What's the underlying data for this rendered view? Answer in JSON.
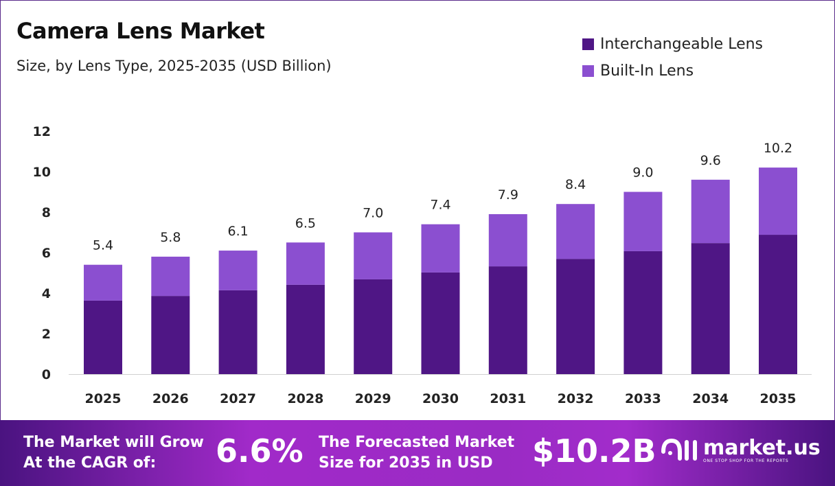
{
  "chart_data": {
    "type": "bar",
    "stacked": true,
    "title": "Camera Lens Market",
    "subtitle": "Size, by Lens Type, 2025-2035 (USD Billion)",
    "categories": [
      "2025",
      "2026",
      "2027",
      "2028",
      "2029",
      "2030",
      "2031",
      "2032",
      "2033",
      "2034",
      "2035"
    ],
    "series": [
      {
        "name": "Interchangeable Lens",
        "color": "#4f1685",
        "values": [
          3.63,
          3.86,
          4.14,
          4.41,
          4.68,
          5.02,
          5.32,
          5.69,
          6.07,
          6.47,
          6.88
        ]
      },
      {
        "name": "Built-In Lens",
        "color": "#8b4fd0",
        "values": [
          1.77,
          1.94,
          1.96,
          2.09,
          2.32,
          2.38,
          2.58,
          2.71,
          2.93,
          3.13,
          3.32
        ]
      }
    ],
    "totals_labels": [
      "5.4",
      "5.8",
      "6.1",
      "6.5",
      "7.0",
      "7.4",
      "7.9",
      "8.4",
      "9.0",
      "9.6",
      "10.2"
    ],
    "ylim": [
      0,
      12
    ],
    "yticks": [
      "0",
      "2",
      "4",
      "6",
      "8",
      "10",
      "12"
    ],
    "grid": false,
    "legend": "top-right"
  },
  "footer": {
    "cagr_text_1": "The Market will Grow",
    "cagr_text_2": "At the CAGR of:",
    "cagr_value": "6.6%",
    "forecast_text_1": "The Forecasted Market",
    "forecast_text_2": "Size for 2035 in USD",
    "forecast_value": "$10.2B",
    "logo_name": "market.us",
    "logo_tagline": "ONE STOP SHOP FOR THE REPORTS"
  }
}
